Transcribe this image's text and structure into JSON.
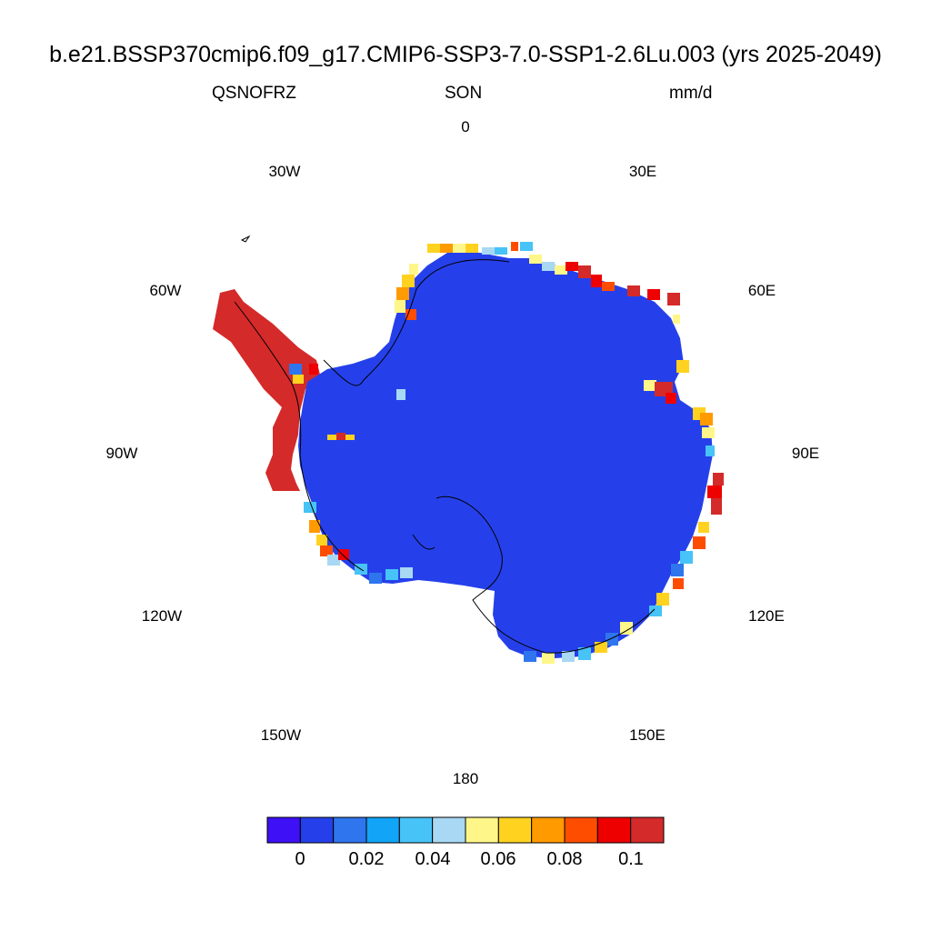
{
  "title": "b.e21.BSSP370cmip6.f09_g17.CMIP6-SSP3-7.0-SSP1-2.6Lu.003 (yrs 2025-2049)",
  "subtitle": {
    "left": "QSNOFRZ",
    "center": "SON",
    "right": "mm/d"
  },
  "longitude_labels": {
    "lon_0": "0",
    "lon_30E": "30E",
    "lon_60E": "60E",
    "lon_90E": "90E",
    "lon_120E": "120E",
    "lon_150E": "150E",
    "lon_180": "180",
    "lon_150W": "150W",
    "lon_120W": "120W",
    "lon_90W": "90W",
    "lon_60W": "60W",
    "lon_30W": "30W"
  },
  "map": {
    "projection": "south-polar-stereographic",
    "region": "Antarctica",
    "interior_value_color": "#2540ea",
    "peninsula_value_color": "#d42a2a"
  },
  "colorbar": {
    "colors": [
      "#3d10f5",
      "#2540ea",
      "#2f75ee",
      "#11a4f7",
      "#47c3f7",
      "#a8d8f3",
      "#fff68a",
      "#ffd21f",
      "#ff9a00",
      "#ff4d00",
      "#ee0000",
      "#d42a2a"
    ],
    "labels": {
      "l0": "0",
      "l1": "0.02",
      "l2": "0.04",
      "l3": "0.06",
      "l4": "0.08",
      "l5": "0.1"
    }
  }
}
